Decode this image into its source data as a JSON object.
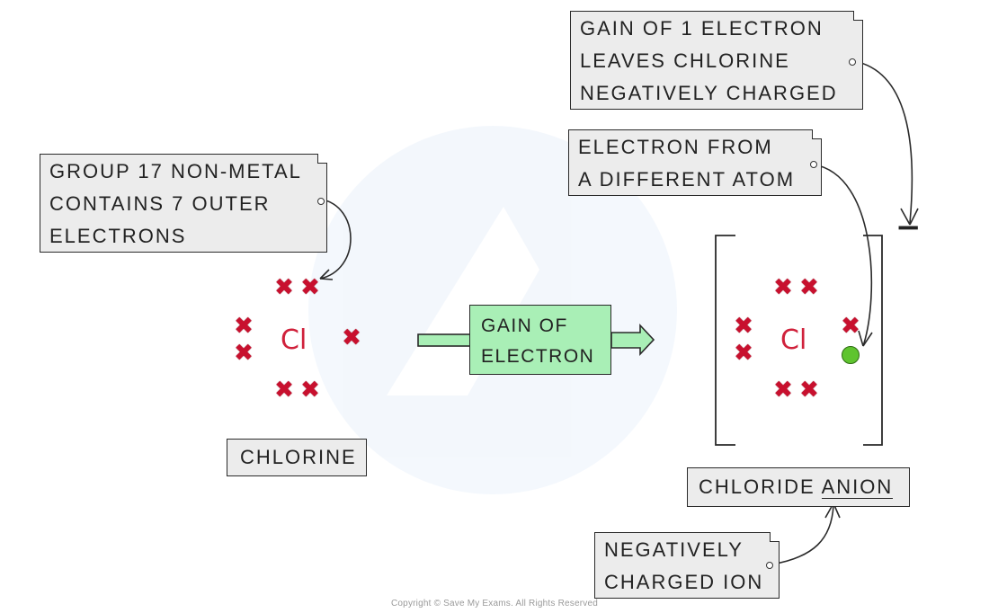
{
  "notes": {
    "group17": [
      "GROUP 17 NON-METAL",
      "CONTAINS 7 OUTER",
      "ELECTRONS"
    ],
    "gain_one": [
      "GAIN OF 1 ELECTRON",
      "LEAVES CHLORINE",
      "NEGATIVELY CHARGED"
    ],
    "different_atom": [
      "ELECTRON FROM",
      "A DIFFERENT ATOM"
    ],
    "negative_ion": [
      "NEGATIVELY",
      "CHARGED ION"
    ]
  },
  "labels": {
    "chlorine": "CHLORINE",
    "chloride_prefix": "CHLORIDE ",
    "chloride_anion": "ANION",
    "element_symbol_left": "Cl",
    "element_symbol_right": "Cl",
    "arrow_line1": "GAIN OF",
    "arrow_line2": "ELECTRON",
    "charge": "−"
  },
  "atoms": {
    "chlorine_outer_electrons": 7,
    "chloride_outer_electrons": 8,
    "added_electrons": 1
  },
  "colors": {
    "electron_cross": "#c8102e",
    "added_electron": "#5fc42f",
    "element_symbol": "#d0213b",
    "arrow_fill": "#a9efb6",
    "note_fill": "#ececec"
  },
  "copyright": "Copyright © Save My Exams. All Rights Reserved"
}
